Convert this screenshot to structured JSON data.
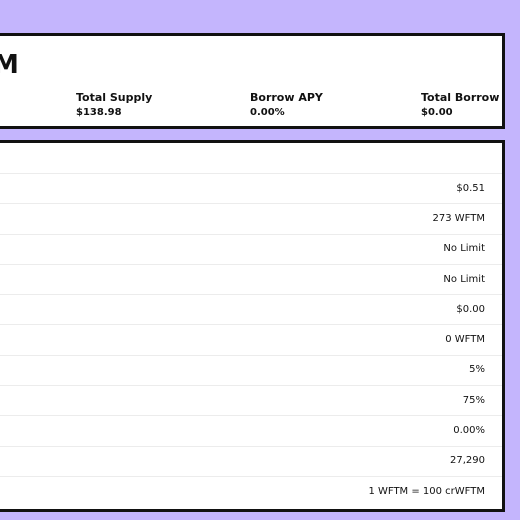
{
  "summary": {
    "symbol": "M",
    "stats": [
      {
        "label": "Total Supply",
        "value": "$138.98"
      },
      {
        "label": "Borrow APY",
        "value": "0.00%"
      },
      {
        "label": "Total Borrow",
        "value": "$0.00"
      }
    ]
  },
  "details": {
    "rows": [
      {
        "value": "$0.51"
      },
      {
        "value": "273 WFTM"
      },
      {
        "value": "No Limit"
      },
      {
        "value": "No Limit"
      },
      {
        "value": "$0.00"
      },
      {
        "value": "0 WFTM"
      },
      {
        "value": "5%"
      },
      {
        "value": "75%"
      },
      {
        "value": "0.00%"
      },
      {
        "value": "27,290"
      },
      {
        "value": "1 WFTM = 100 crWFTM"
      }
    ]
  },
  "colors": {
    "background": "#c4b5fd",
    "panel": "#ffffff",
    "border": "#111111",
    "divider": "#ececec"
  }
}
